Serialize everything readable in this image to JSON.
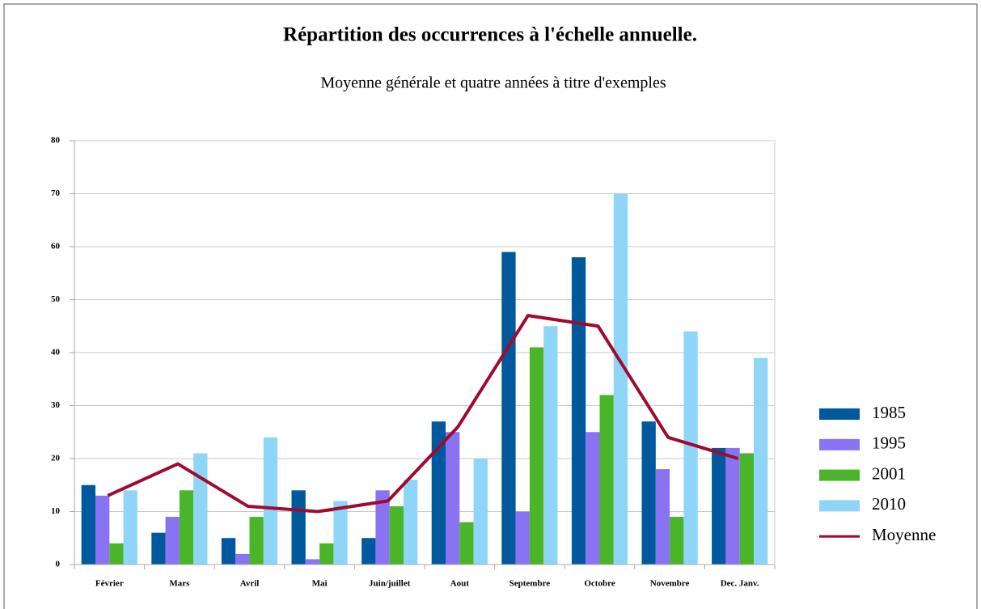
{
  "chart_data": {
    "type": "bar",
    "title": "Répartition des occurrences à l'échelle annuelle.",
    "subtitle": "Moyenne générale et quatre années à titre d'exemples",
    "categories": [
      "Février",
      "Mars",
      "Avril",
      "Mai",
      "Juin/juillet",
      "Aout",
      "Septembre",
      "Octobre",
      "Novembre",
      "Dec. Janv."
    ],
    "series": [
      {
        "name": "1985",
        "color": "#00599d",
        "values": [
          15,
          6,
          5,
          14,
          5,
          27,
          59,
          58,
          27,
          22
        ]
      },
      {
        "name": "1995",
        "color": "#8a73f2",
        "values": [
          13,
          9,
          2,
          1,
          14,
          25,
          10,
          25,
          18,
          22
        ]
      },
      {
        "name": "2001",
        "color": "#4bb52a",
        "values": [
          4,
          14,
          9,
          4,
          11,
          8,
          41,
          32,
          9,
          21
        ]
      },
      {
        "name": "2010",
        "color": "#8fd5f8",
        "values": [
          14,
          21,
          24,
          12,
          16,
          20,
          45,
          70,
          44,
          39
        ]
      },
      {
        "name": "Moyenne",
        "color": "#9e0b2f",
        "type": "line",
        "values": [
          13,
          19,
          11,
          10,
          12,
          26,
          47,
          45,
          24,
          20
        ]
      }
    ],
    "ylim": [
      0,
      80
    ],
    "yticks": [
      0,
      10,
      20,
      30,
      40,
      50,
      60,
      70,
      80
    ],
    "grid": true,
    "legend": "right"
  }
}
